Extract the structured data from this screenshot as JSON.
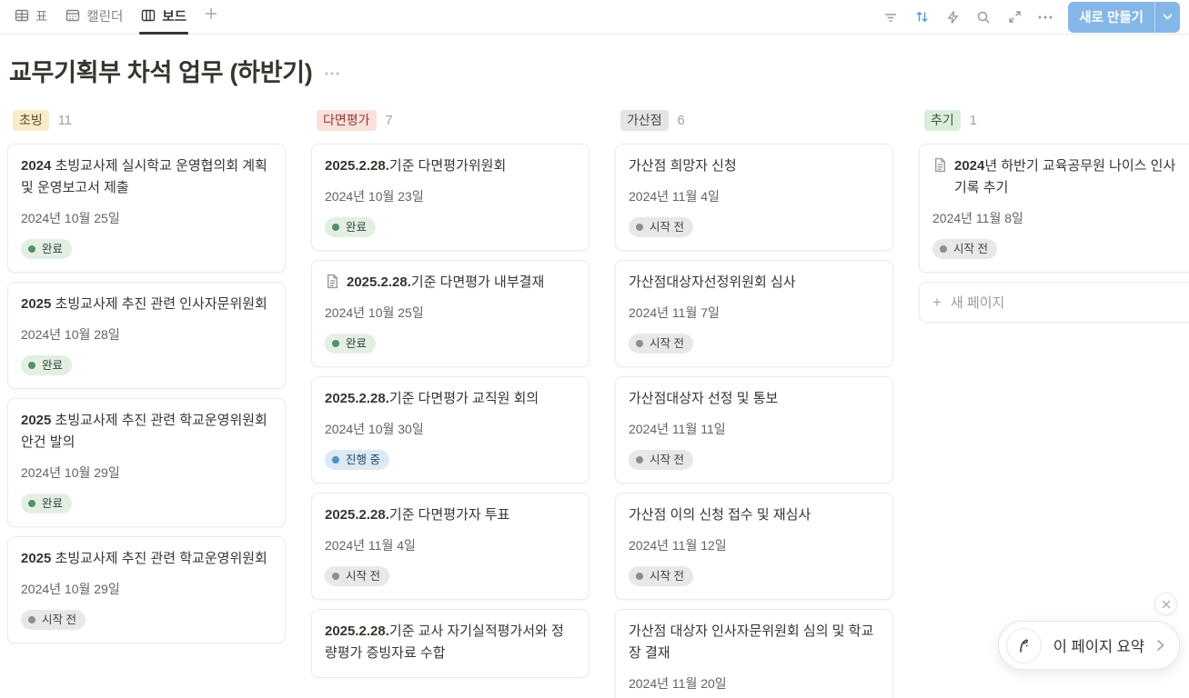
{
  "view_tabs": [
    {
      "label": "표",
      "icon": "table-icon",
      "active": false
    },
    {
      "label": "캘린더",
      "icon": "calendar-icon",
      "active": false
    },
    {
      "label": "보드",
      "icon": "board-icon",
      "active": true
    }
  ],
  "toolbar": {
    "new_button_label": "새로 만들기",
    "accent_color": "#85b6e8",
    "sort_icon_color": "#5b9bd5"
  },
  "page": {
    "title": "교무기획부 차석 업무 (하반기)"
  },
  "status_colors": {
    "green": "#e4efe4",
    "blue": "#dceaf5",
    "gray": "#e9e8e6"
  },
  "board": {
    "columns": [
      {
        "tag": "초빙",
        "tag_color": "yellow",
        "count": "11",
        "cards": [
          {
            "title_bold": "2024",
            "title_rest": " 초빙교사제 실시학교 운영협의회 계획 및 운영보고서 제출",
            "date": "2024년 10월 25일",
            "status": {
              "label": "완료",
              "color": "green"
            }
          },
          {
            "title_bold": "2025",
            "title_rest": " 초빙교사제 추진 관련 인사자문위원회",
            "date": "2024년 10월 28일",
            "status": {
              "label": "완료",
              "color": "green"
            }
          },
          {
            "title_bold": "2025",
            "title_rest": " 초빙교사제 추진 관련 학교운영위원회 안건 발의",
            "date": "2024년 10월 29일",
            "status": {
              "label": "완료",
              "color": "green"
            }
          },
          {
            "title_bold": "2025",
            "title_rest": " 초빙교사제 추진 관련 학교운영위원회",
            "date": "2024년 10월 29일",
            "status": {
              "label": "시작 전",
              "color": "gray"
            }
          }
        ]
      },
      {
        "tag": "다면평가",
        "tag_color": "red",
        "count": "7",
        "cards": [
          {
            "title_bold": "2025.2.28.",
            "title_rest": "기준 다면평가위원회",
            "date": "2024년 10월 23일",
            "status": {
              "label": "완료",
              "color": "green"
            }
          },
          {
            "icon": "page-icon",
            "title_bold": "2025.2.28.",
            "title_rest": "기준 다면평가 내부결재",
            "date": "2024년 10월 25일",
            "status": {
              "label": "완료",
              "color": "green"
            }
          },
          {
            "title_bold": "2025.2.28.",
            "title_rest": "기준 다면평가 교직원 회의",
            "date": "2024년 10월 30일",
            "status": {
              "label": "진행 중",
              "color": "blue"
            }
          },
          {
            "title_bold": "2025.2.28.",
            "title_rest": "기준 다면평가자 투표",
            "date": "2024년 11월 4일",
            "status": {
              "label": "시작 전",
              "color": "gray"
            }
          },
          {
            "title_bold": "2025.2.28.",
            "title_rest": "기준 교사 자기실적평가서와 정량평가 증빙자료 수합"
          }
        ]
      },
      {
        "tag": "가산점",
        "tag_color": "gray",
        "count": "6",
        "cards": [
          {
            "title_bold": "",
            "title_rest": "가산점 희망자 신청",
            "date": "2024년 11월 4일",
            "status": {
              "label": "시작 전",
              "color": "gray"
            }
          },
          {
            "title_bold": "",
            "title_rest": "가산점대상자선정위원회 심사",
            "date": "2024년 11월 7일",
            "status": {
              "label": "시작 전",
              "color": "gray"
            }
          },
          {
            "title_bold": "",
            "title_rest": "가산점대상자 선정 및 통보",
            "date": "2024년 11월 11일",
            "status": {
              "label": "시작 전",
              "color": "gray"
            }
          },
          {
            "title_bold": "",
            "title_rest": "가산점 이의 신청 접수 및 재심사",
            "date": "2024년 11월 12일",
            "status": {
              "label": "시작 전",
              "color": "gray"
            }
          },
          {
            "title_bold": "",
            "title_rest": "가산점 대상자 인사자문위원회 심의 및 학교장 결재",
            "date": "2024년 11월 20일"
          }
        ]
      },
      {
        "tag": "추기",
        "tag_color": "green",
        "count": "1",
        "new_page_label": "새 페이지",
        "cards": [
          {
            "icon": "page-icon",
            "title_bold": "2024",
            "title_rest": "년 하반기 교육공무원 나이스 인사기록 추기",
            "date": "2024년 11월 8일",
            "status": {
              "label": "시작 전",
              "color": "gray"
            }
          }
        ]
      }
    ]
  },
  "ai_summary": {
    "label": "이 페이지 요약"
  }
}
